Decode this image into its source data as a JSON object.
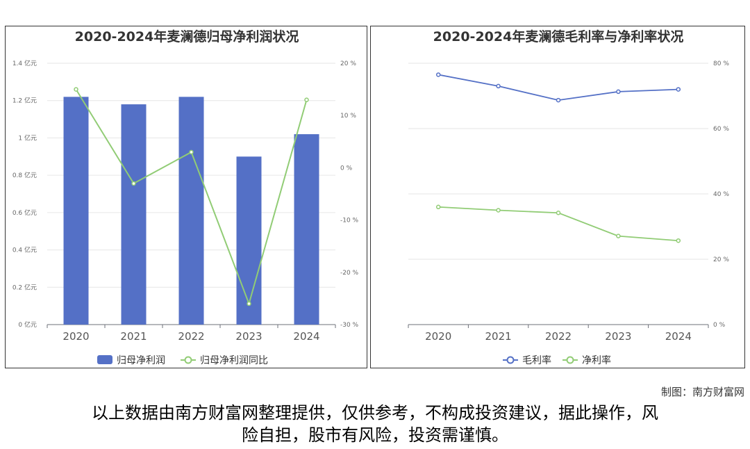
{
  "chart_data": [
    {
      "type": "bar",
      "title": "2020-2024年麦澜德归母净利润状况",
      "categories": [
        "2020",
        "2021",
        "2022",
        "2023",
        "2024"
      ],
      "series": [
        {
          "name": "归母净利润",
          "type": "bar",
          "axis": "left",
          "values": [
            1.22,
            1.18,
            1.22,
            0.9,
            1.02
          ]
        },
        {
          "name": "归母净利润同比",
          "type": "line",
          "axis": "right",
          "values": [
            15,
            -3,
            3,
            -26,
            13
          ]
        }
      ],
      "y_left": {
        "ylim": [
          0,
          1.4
        ],
        "ticks": [
          0,
          0.2,
          0.4,
          0.6,
          0.8,
          1,
          1.2,
          1.4
        ],
        "tick_labels": [
          "0 亿元",
          "0.2 亿元",
          "0.4 亿元",
          "0.6 亿元",
          "0.8 亿元",
          "1 亿元",
          "1.2 亿元",
          "1.4 亿元"
        ]
      },
      "y_right": {
        "ylim": [
          -30,
          20
        ],
        "ticks": [
          -30,
          -20,
          -10,
          0,
          10,
          20
        ],
        "tick_labels": [
          "-30 %",
          "-20 %",
          "-10 %",
          "0 %",
          "10 %",
          "20 %"
        ]
      },
      "legend": "bottom",
      "colors": {
        "bar": "#5470c6",
        "line": "#91cc75"
      }
    },
    {
      "type": "line",
      "title": "2020-2024年麦澜德毛利率与净利率状况",
      "categories": [
        "2020",
        "2021",
        "2022",
        "2023",
        "2024"
      ],
      "series": [
        {
          "name": "毛利率",
          "values": [
            76.5,
            73.0,
            68.7,
            71.3,
            72.0
          ]
        },
        {
          "name": "净利率",
          "values": [
            36.0,
            35.0,
            34.2,
            27.1,
            25.7
          ]
        }
      ],
      "y_right": {
        "ylim": [
          0,
          80
        ],
        "ticks": [
          0,
          20,
          40,
          60,
          80
        ],
        "tick_labels": [
          "0 %",
          "20 %",
          "40 %",
          "60 %",
          "80 %"
        ]
      },
      "legend": "bottom",
      "colors": {
        "series0": "#5470c6",
        "series1": "#91cc75"
      }
    }
  ],
  "credit": "制图：南方财富网",
  "disclaimer": [
    "以上数据由南方财富网整理提供，仅供参考，不构成投资建议，据此操作，风",
    "险自担，股市有风险，投资需谨慎。"
  ]
}
